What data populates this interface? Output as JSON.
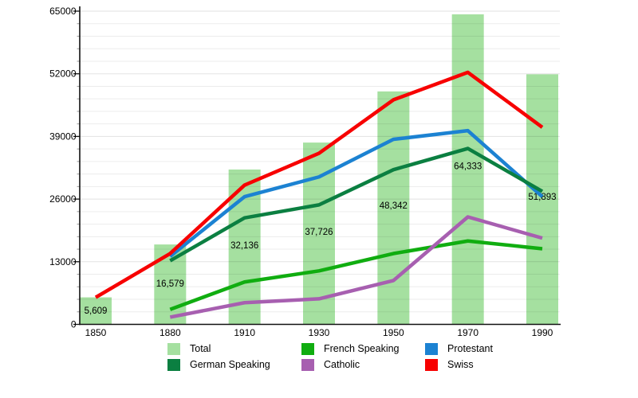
{
  "page": {
    "background": "#ffffff"
  },
  "chart_data": {
    "type": "bar",
    "combo_note": "bar chart of Total population with overlaid line series",
    "title": "",
    "xlabel": "",
    "ylabel": "",
    "categories": [
      "1850",
      "1880",
      "1910",
      "1930",
      "1950",
      "1970",
      "1990"
    ],
    "ylim": [
      0,
      65000
    ],
    "y_major_step": 13000,
    "y_minor_step": 2600,
    "y_ticks": [
      "0",
      "13000",
      "26000",
      "39000",
      "52000",
      "65000"
    ],
    "grid": "horizontal, minor every 2600, major every 13000",
    "legend_position": "bottom",
    "total": {
      "name": "Total",
      "color": "#a5e0a0",
      "values": [
        5609,
        16579,
        32136,
        37726,
        48342,
        64333,
        51893
      ],
      "labels": [
        "5,609",
        "16,579",
        "32,136",
        "37,726",
        "48,342",
        "64,333",
        "51,893"
      ]
    },
    "series": [
      {
        "name": "French Speaking",
        "color": "#10ad10",
        "start_index": 1,
        "values": [
          3100,
          8800,
          11100,
          14700,
          17300,
          15700
        ]
      },
      {
        "name": "Catholic",
        "color": "#a75fb0",
        "start_index": 1,
        "values": [
          1500,
          4500,
          5300,
          9100,
          22300,
          17900
        ]
      },
      {
        "name": "Protestant",
        "color": "#1c82d2",
        "start_index": 1,
        "values": [
          14100,
          26500,
          30600,
          38400,
          40200,
          26500
        ]
      },
      {
        "name": "German Speaking",
        "color": "#0b7f41",
        "start_index": 1,
        "values": [
          13200,
          22100,
          24800,
          32100,
          36500,
          27600
        ]
      },
      {
        "name": "Swiss",
        "color": "#f70000",
        "start_index": 0,
        "values": [
          5600,
          14700,
          28900,
          35500,
          46600,
          52300,
          40900
        ]
      }
    ],
    "legend_columns": [
      [
        {
          "label": "Total",
          "color": "#a5e0a0"
        },
        {
          "label": "German Speaking",
          "color": "#0b7f41"
        }
      ],
      [
        {
          "label": "French Speaking",
          "color": "#10ad10"
        },
        {
          "label": "Catholic",
          "color": "#a75fb0"
        }
      ],
      [
        {
          "label": "Protestant",
          "color": "#1c82d2"
        },
        {
          "label": "Swiss",
          "color": "#f70000"
        }
      ]
    ]
  }
}
